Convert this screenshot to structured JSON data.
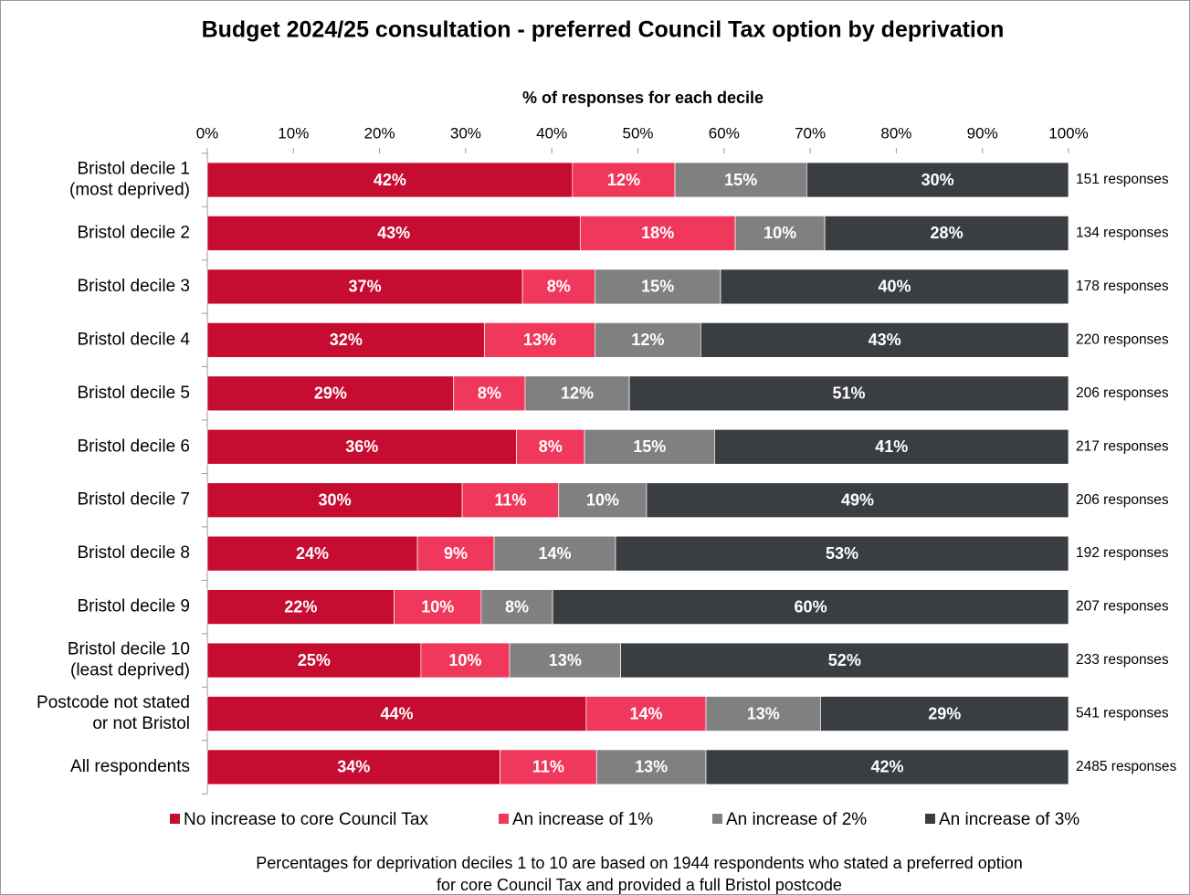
{
  "chart_data": {
    "type": "stacked_bar_horizontal",
    "title": "Budget 2024/25 consultation - preferred Council Tax option by deprivation",
    "x_label": "% of responses for each decile",
    "xlim": [
      0,
      100
    ],
    "xticks": [
      {
        "value": 0,
        "label": "0%"
      },
      {
        "value": 10,
        "label": "10%"
      },
      {
        "value": 20,
        "label": "20%"
      },
      {
        "value": 30,
        "label": "30%"
      },
      {
        "value": 40,
        "label": "40%"
      },
      {
        "value": 50,
        "label": "50%"
      },
      {
        "value": 60,
        "label": "60%"
      },
      {
        "value": 70,
        "label": "70%"
      },
      {
        "value": 80,
        "label": "80%"
      },
      {
        "value": 90,
        "label": "90%"
      },
      {
        "value": 100,
        "label": "100%"
      }
    ],
    "categories": [
      [
        "Bristol decile 1",
        "(most deprived)"
      ],
      [
        "Bristol decile 2"
      ],
      [
        "Bristol decile 3"
      ],
      [
        "Bristol decile 4"
      ],
      [
        "Bristol decile 5"
      ],
      [
        "Bristol decile 6"
      ],
      [
        "Bristol decile 7"
      ],
      [
        "Bristol decile 8"
      ],
      [
        "Bristol decile 9"
      ],
      [
        "Bristol decile 10",
        "(least deprived)"
      ],
      [
        "Postcode not stated",
        "or not Bristol"
      ],
      [
        "All respondents"
      ]
    ],
    "responses": [
      "151 responses",
      "134 responses",
      "178 responses",
      "220 responses",
      "206 responses",
      "217 responses",
      "206 responses",
      "192 responses",
      "207 responses",
      "233 responses",
      "541 responses",
      "2485 responses"
    ],
    "series": [
      {
        "name": "No increase to core Council Tax",
        "color": "#c60c30",
        "values": [
          42.4,
          43.3,
          36.6,
          32.2,
          28.6,
          35.9,
          29.6,
          24.4,
          21.7,
          24.8,
          44.0,
          34.0
        ],
        "value_labels": [
          "42%",
          "43%",
          "37%",
          "32%",
          "29%",
          "36%",
          "30%",
          "24%",
          "22%",
          "25%",
          "44%",
          "34%"
        ]
      },
      {
        "name": "An increase of 1%",
        "color": "#f0385c",
        "values": [
          11.9,
          18.0,
          8.4,
          12.8,
          8.3,
          7.9,
          11.2,
          8.9,
          10.1,
          10.3,
          13.9,
          11.2
        ],
        "value_labels": [
          "12%",
          "18%",
          "8%",
          "13%",
          "8%",
          "8%",
          "11%",
          "9%",
          "10%",
          "10%",
          "14%",
          "11%"
        ]
      },
      {
        "name": "An increase of 2%",
        "color": "#808080",
        "values": [
          15.3,
          10.4,
          14.6,
          12.3,
          12.1,
          15.1,
          10.2,
          14.1,
          8.3,
          12.9,
          13.3,
          12.7
        ],
        "value_labels": [
          "15%",
          "10%",
          "15%",
          "12%",
          "12%",
          "15%",
          "10%",
          "14%",
          "8%",
          "13%",
          "13%",
          "13%"
        ]
      },
      {
        "name": "An increase of 3%",
        "color": "#3a3d42",
        "values": [
          30.4,
          28.3,
          40.4,
          42.7,
          51.0,
          41.1,
          49.0,
          52.6,
          59.9,
          52.0,
          28.8,
          42.1
        ],
        "value_labels": [
          "30%",
          "28%",
          "40%",
          "43%",
          "51%",
          "41%",
          "49%",
          "53%",
          "60%",
          "52%",
          "29%",
          "42%"
        ]
      }
    ],
    "note": [
      "Percentages for deprivation deciles 1 to 10 are based on 1944 respondents who stated a preferred option",
      "for core Council Tax and provided a full Bristol postcode"
    ]
  }
}
